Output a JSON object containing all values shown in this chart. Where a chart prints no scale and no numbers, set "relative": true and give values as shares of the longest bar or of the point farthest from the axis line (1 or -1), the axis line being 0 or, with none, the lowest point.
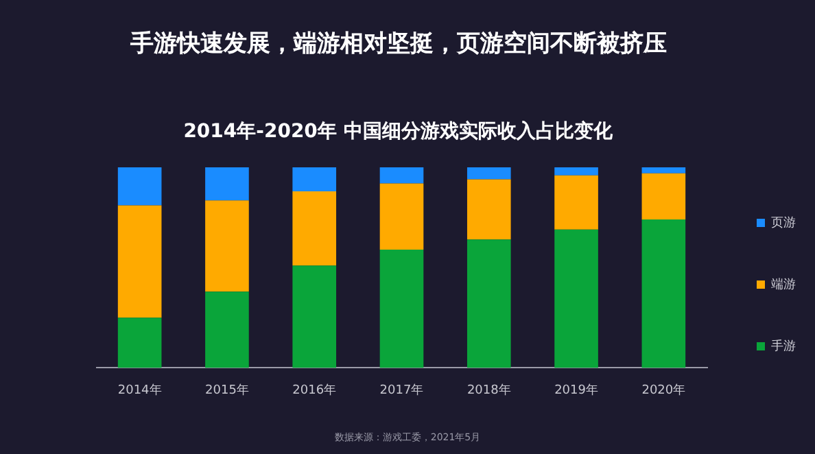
{
  "chart_data": {
    "type": "bar",
    "title": "手游快速发展，端游相对坚挺，页游空间不断被挤压",
    "subtitle": "2014年-2020年 中国细分游戏实际收入占比变化",
    "categories": [
      "2014年",
      "2015年",
      "2016年",
      "2017年",
      "2018年",
      "2019年",
      "2020年"
    ],
    "stacked": true,
    "relative": true,
    "grid": false,
    "legend": "right",
    "series": [
      {
        "name": "手游",
        "color": "#0aa53a",
        "values": [
          0.25,
          0.38,
          0.51,
          0.59,
          0.64,
          0.69,
          0.74
        ]
      },
      {
        "name": "端游",
        "color": "#ffaa00",
        "values": [
          0.56,
          0.455,
          0.37,
          0.33,
          0.3,
          0.27,
          0.23
        ]
      },
      {
        "name": "页游",
        "color": "#1a8cff",
        "values": [
          0.19,
          0.165,
          0.12,
          0.08,
          0.06,
          0.04,
          0.03
        ]
      }
    ],
    "annotations": [
      "数据来源：游戏工委，2021年5月"
    ]
  }
}
